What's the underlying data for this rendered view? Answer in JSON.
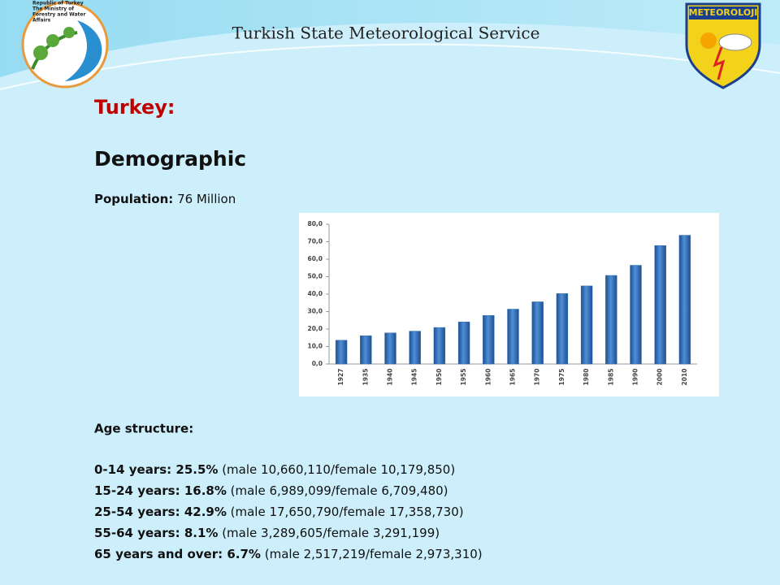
{
  "header": {
    "title": "Turkish State Meteorological Service",
    "left_logo_text": [
      "Republic of Turkey",
      "The Ministry of",
      "Forestry and Water",
      "Affairs"
    ],
    "right_logo_text": "METEOROLOJI"
  },
  "heading": "Turkey:",
  "subheading": "Demographic",
  "population": {
    "label": "Population:",
    "value": "76 Million"
  },
  "age_structure": {
    "title": "Age structure:",
    "items": [
      {
        "label": "0-14 years: 25.5%",
        "detail": "(male 10,660,110/female 10,179,850)"
      },
      {
        "label": "15-24 years: 16.8%",
        "detail": "(male 6,989,099/female 6,709,480)"
      },
      {
        "label": "25-54 years: 42.9%",
        "detail": "(male 17,650,790/female 17,358,730)"
      },
      {
        "label": "55-64 years: 8.1%",
        "detail": "(male 3,289,605/female 3,291,199)"
      },
      {
        "label": "65 years and over: 6.7%",
        "detail": "(male 2,517,219/female 2,973,310)"
      }
    ]
  },
  "chart_data": {
    "type": "bar",
    "categories": [
      "1927",
      "1935",
      "1940",
      "1945",
      "1950",
      "1955",
      "1960",
      "1965",
      "1970",
      "1975",
      "1980",
      "1985",
      "1990",
      "2000",
      "2010"
    ],
    "values": [
      13.6,
      16.2,
      17.8,
      18.8,
      20.9,
      24.1,
      27.8,
      31.4,
      35.6,
      40.3,
      44.7,
      50.7,
      56.5,
      67.8,
      73.7
    ],
    "color": "#2f6db6",
    "ylim": [
      0,
      80
    ],
    "yticks": [
      {
        "value": 0,
        "label": "0,0"
      },
      {
        "value": 10,
        "label": "10,0"
      },
      {
        "value": 20,
        "label": "20,0"
      },
      {
        "value": 30,
        "label": "30,0"
      },
      {
        "value": 40,
        "label": "40,0"
      },
      {
        "value": 50,
        "label": "50,0"
      },
      {
        "value": 60,
        "label": "60,0"
      },
      {
        "value": 70,
        "label": "70,0"
      },
      {
        "value": 80,
        "label": "80,0"
      }
    ],
    "grid": false
  }
}
